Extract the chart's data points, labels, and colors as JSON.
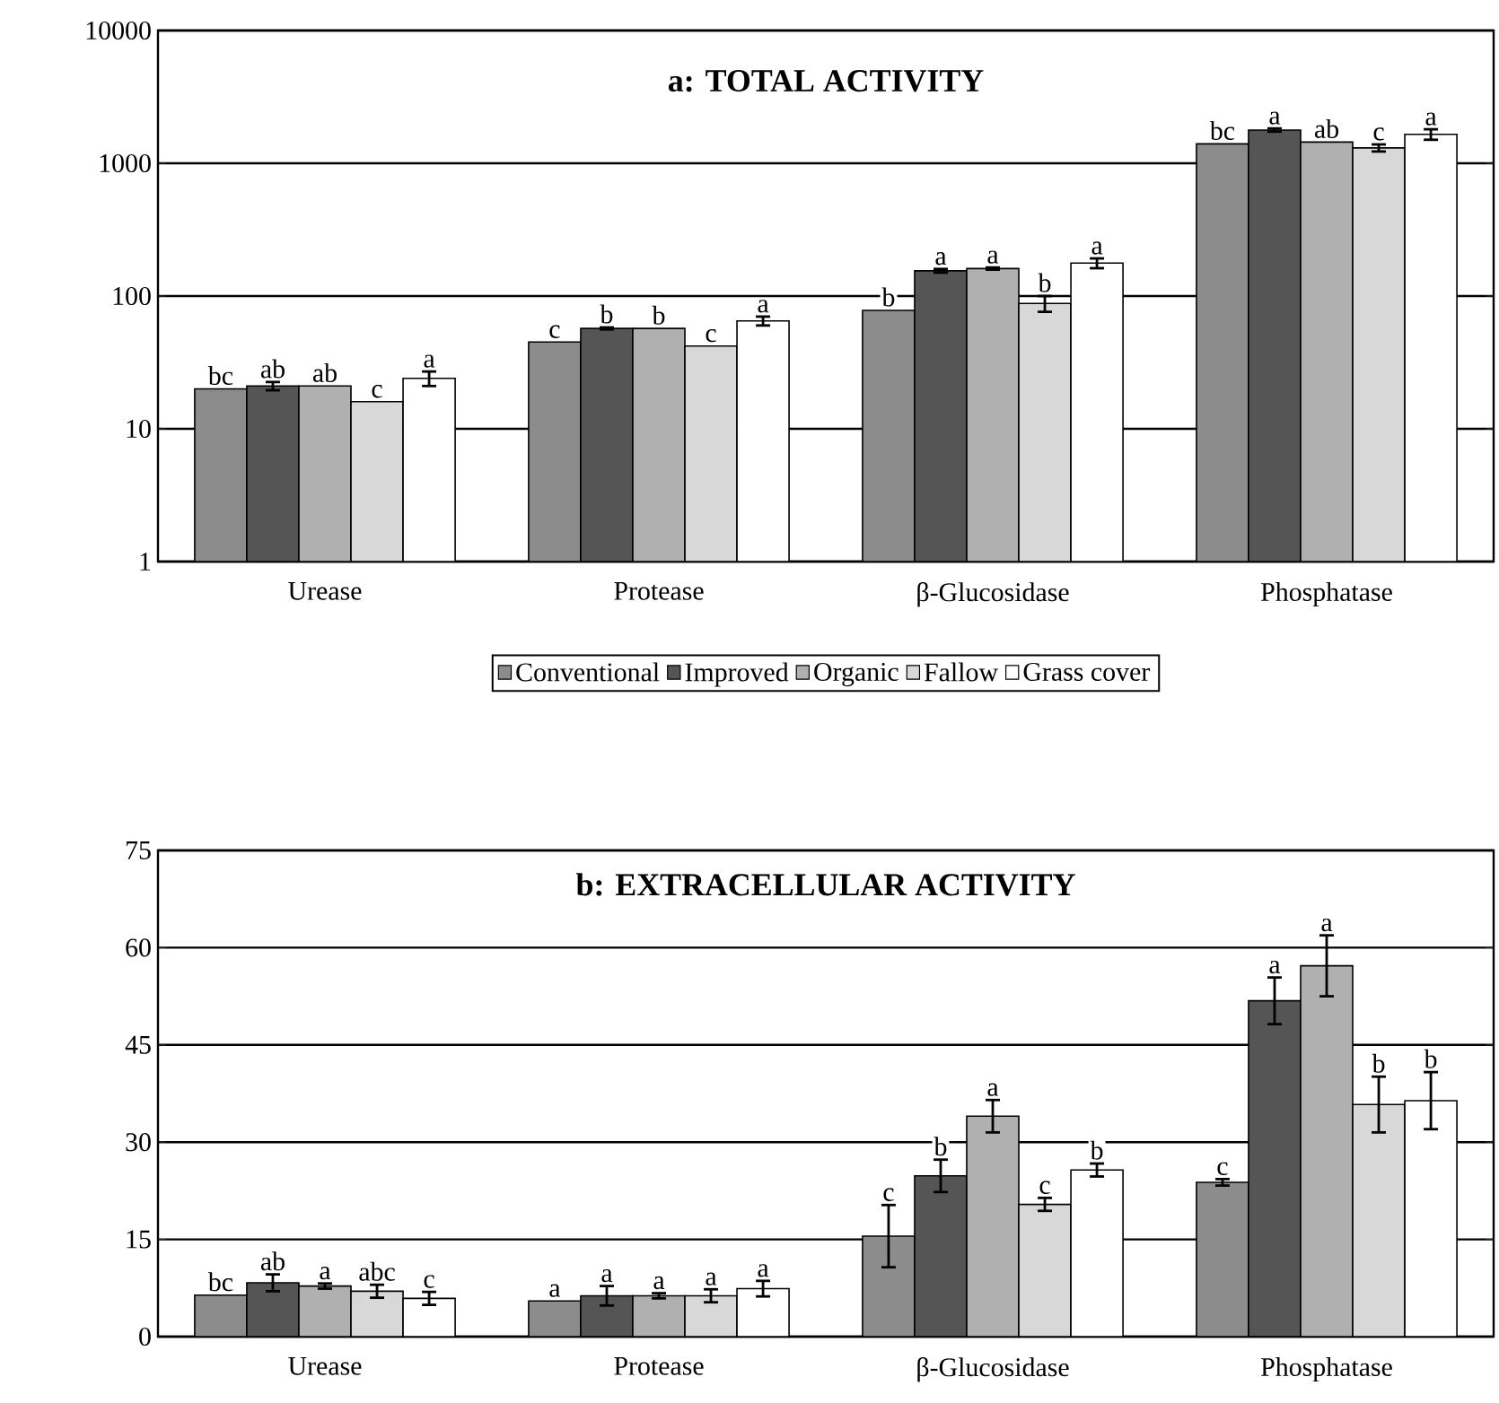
{
  "chart_data": [
    {
      "type": "bar",
      "title": "a: TOTAL ACTIVITY",
      "categories": [
        "Urease",
        "Protease",
        "β-Glucosidase",
        "Phosphatase"
      ],
      "log": true,
      "ylim": [
        1,
        10000
      ],
      "yticks": [
        1,
        10,
        100,
        1000,
        10000
      ],
      "grid": "y",
      "legend": "bottom",
      "series": [
        {
          "name": "Conventional",
          "color": "#8c8c8c",
          "values": [
            20,
            45,
            78,
            1400
          ],
          "errors": [
            null,
            null,
            null,
            null
          ],
          "value_labels": [
            "bc",
            "c",
            "b",
            "bc"
          ]
        },
        {
          "name": "Improved",
          "color": "#555555",
          "values": [
            21,
            57,
            155,
            1780
          ],
          "errors": [
            1.5,
            1,
            5,
            50
          ],
          "value_labels": [
            "ab",
            "b",
            "a",
            "a"
          ]
        },
        {
          "name": "Organic",
          "color": "#b0b0b0",
          "values": [
            21,
            57,
            161,
            1445
          ],
          "errors": [
            null,
            null,
            3,
            null
          ],
          "value_labels": [
            "ab",
            "b",
            "a",
            "ab"
          ]
        },
        {
          "name": "Fallow",
          "color": "#d8d8d8",
          "values": [
            16,
            42,
            88,
            1306
          ],
          "errors": [
            null,
            null,
            12,
            80
          ],
          "value_labels": [
            "c",
            "c",
            "b",
            "c"
          ]
        },
        {
          "name": "Grass cover",
          "color": "#ffffff",
          "values": [
            24,
            65,
            177,
            1653
          ],
          "errors": [
            3,
            5,
            15,
            150
          ],
          "value_labels": [
            "a",
            "a",
            "a",
            "a"
          ]
        }
      ]
    },
    {
      "type": "bar",
      "title": "b: EXTRACELLULAR ACTIVITY",
      "categories": [
        "Urease",
        "Protease",
        "β-Glucosidase",
        "Phosphatase"
      ],
      "ylim": [
        0,
        75
      ],
      "yticks": [
        0,
        15,
        30,
        45,
        60,
        75
      ],
      "grid": "y",
      "series": [
        {
          "color": "#8c8c8c",
          "values": [
            6.4,
            5.5,
            15.5,
            23.8
          ],
          "errors": [
            null,
            null,
            4.8,
            0.5
          ],
          "value_labels": [
            "bc",
            "a",
            "c",
            "c"
          ]
        },
        {
          "color": "#555555",
          "values": [
            8.3,
            6.3,
            24.8,
            51.8
          ],
          "errors": [
            1.3,
            1.5,
            2.5,
            3.6
          ],
          "value_labels": [
            "ab",
            "a",
            "b",
            "a"
          ]
        },
        {
          "color": "#b0b0b0",
          "values": [
            7.8,
            6.3,
            34.0,
            57.2
          ],
          "errors": [
            0.4,
            0.4,
            2.5,
            4.7
          ],
          "value_labels": [
            "a",
            "a",
            "a",
            "a"
          ]
        },
        {
          "color": "#d8d8d8",
          "values": [
            7.0,
            6.3,
            20.4,
            35.8
          ],
          "errors": [
            1,
            1,
            1,
            4.3
          ],
          "value_labels": [
            "abc",
            "a",
            "c",
            "b"
          ]
        },
        {
          "color": "#ffffff",
          "values": [
            5.9,
            7.4,
            25.7,
            36.4
          ],
          "errors": [
            1,
            1.2,
            1,
            4.4
          ],
          "value_labels": [
            "c",
            "a",
            "b",
            "b"
          ]
        }
      ]
    }
  ]
}
